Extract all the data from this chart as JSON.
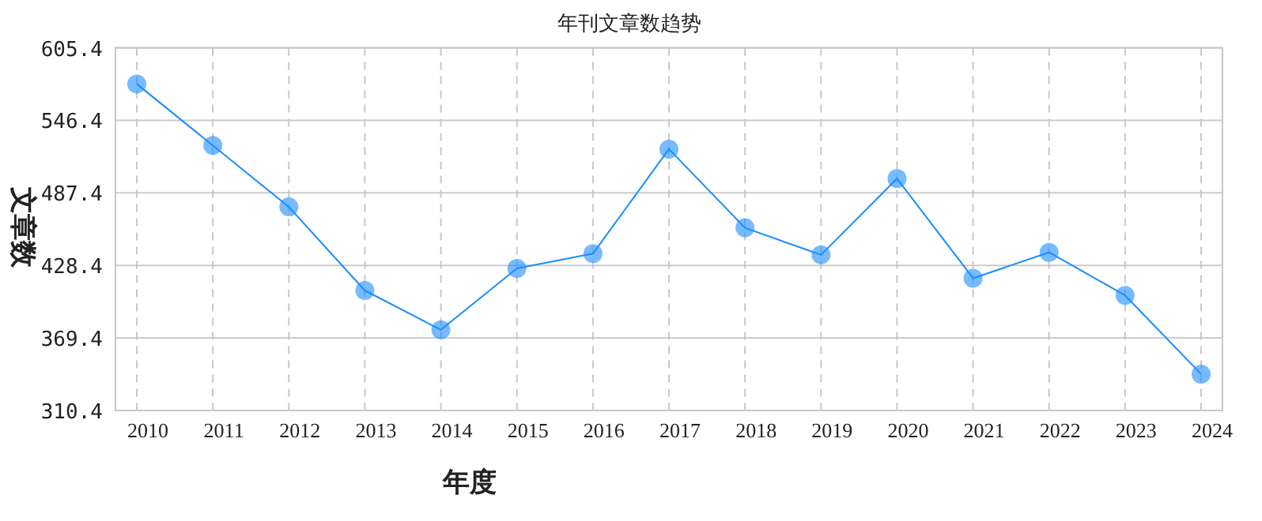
{
  "chart_data": {
    "type": "line",
    "title": "年刊文章数趋势",
    "xlabel": "年度",
    "ylabel": "文章数",
    "categories": [
      "2010",
      "2011",
      "2012",
      "2013",
      "2014",
      "2015",
      "2016",
      "2017",
      "2018",
      "2019",
      "2020",
      "2021",
      "2022",
      "2023",
      "2024"
    ],
    "series": [
      {
        "color": "#1a8cff",
        "values": [
          576,
          526,
          476,
          408,
          376,
          426,
          438,
          523,
          459,
          437,
          499,
          418,
          439,
          404,
          340
        ]
      }
    ],
    "ylim": [
      310.4,
      605.4
    ],
    "yticks": [
      310.4,
      369.4,
      428.4,
      487.4,
      546.4,
      605.4
    ],
    "grid": true,
    "marker": "circle",
    "line_style": "solid"
  }
}
